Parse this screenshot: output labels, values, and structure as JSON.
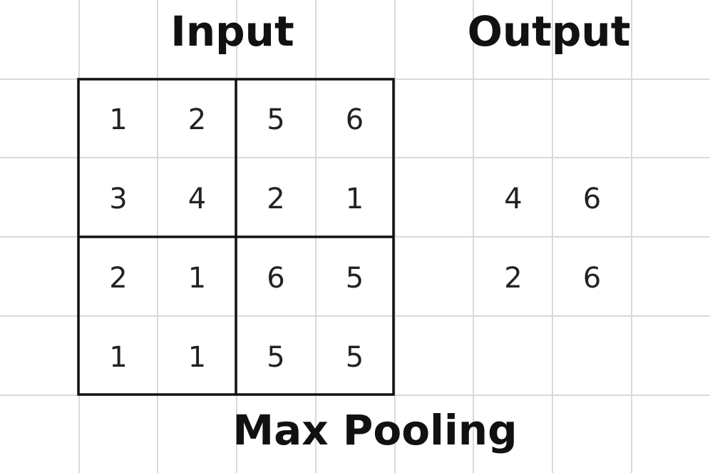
{
  "titles": {
    "input": "Input",
    "output": "Output",
    "caption": "Max Pooling"
  },
  "input_matrix": [
    [
      "1",
      "2",
      "5",
      "6"
    ],
    [
      "3",
      "4",
      "2",
      "1"
    ],
    [
      "2",
      "1",
      "6",
      "5"
    ],
    [
      "1",
      "1",
      "5",
      "5"
    ]
  ],
  "output_matrix": [
    [
      "4",
      "6"
    ],
    [
      "2",
      "6"
    ]
  ],
  "colors": {
    "grid": "#d9d9d9",
    "box": "#111111",
    "text": "#222222"
  }
}
